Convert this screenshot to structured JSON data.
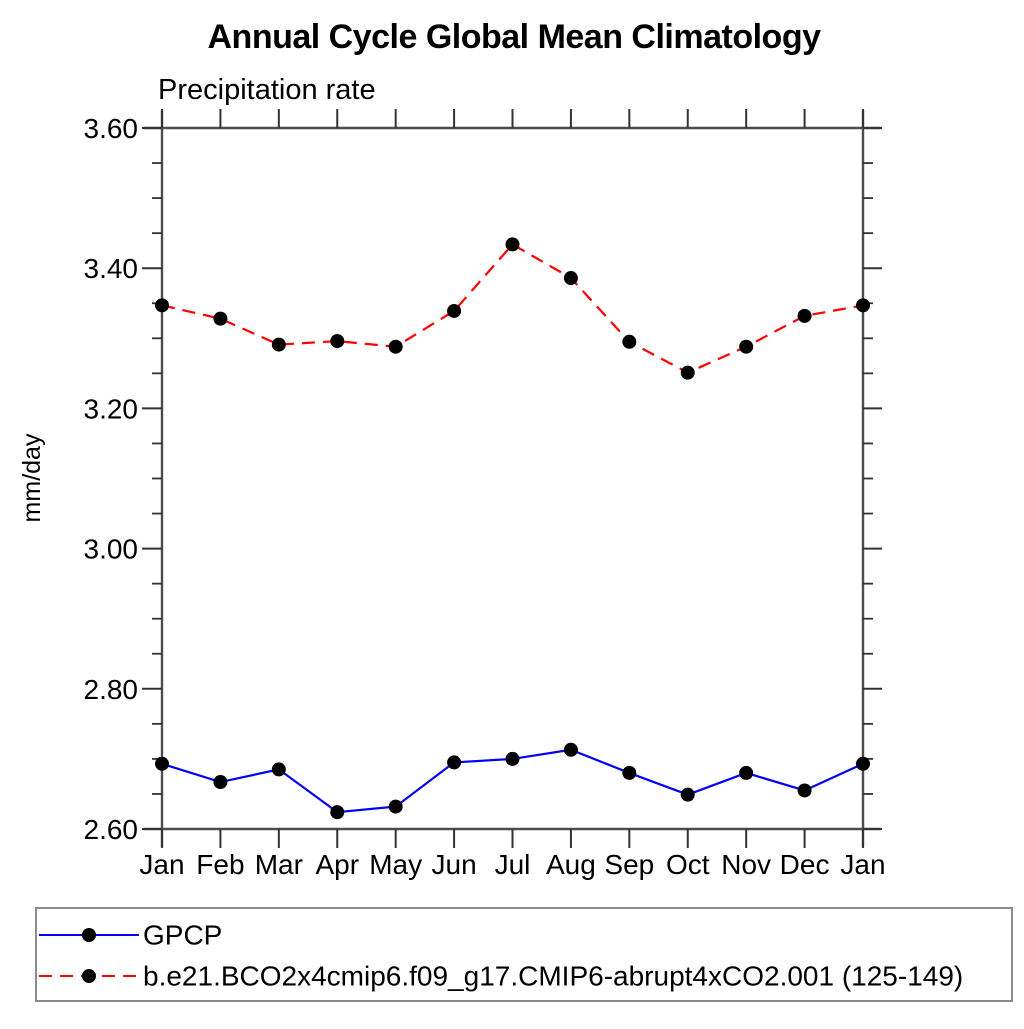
{
  "title": "Annual Cycle Global Mean Climatology",
  "subtitle": "Precipitation rate",
  "y_axis": {
    "label": "mm/day",
    "tick_labels": [
      "2.60",
      "2.80",
      "3.00",
      "3.20",
      "3.40",
      "3.60"
    ]
  },
  "x_axis": {
    "tick_labels": [
      "Jan",
      "Feb",
      "Mar",
      "Apr",
      "May",
      "Jun",
      "Jul",
      "Aug",
      "Sep",
      "Oct",
      "Nov",
      "Dec",
      "Jan"
    ]
  },
  "legend": {
    "entries": [
      {
        "label": "GPCP",
        "color": "#0000ff",
        "style": "solid"
      },
      {
        "label": "b.e21.BCO2x4cmip6.f09_g17.CMIP6-abrupt4xCO2.001 (125-149)",
        "color": "#ff0000",
        "style": "dashed"
      }
    ]
  },
  "colors": {
    "gpcp_line": "#0000ff",
    "model_line": "#ff0000",
    "marker": "#000000",
    "axis": "#4d4d4d",
    "tick": "#333333",
    "legend_border": "#8a8a8a",
    "background": "#ffffff"
  },
  "chart_data": {
    "type": "line",
    "title": "Annual Cycle Global Mean Climatology",
    "subtitle": "Precipitation rate",
    "ylabel": "mm/day",
    "x": [
      "Jan",
      "Feb",
      "Mar",
      "Apr",
      "May",
      "Jun",
      "Jul",
      "Aug",
      "Sep",
      "Oct",
      "Nov",
      "Dec",
      "Jan"
    ],
    "series": [
      {
        "name": "GPCP",
        "color": "#0000ff",
        "line_style": "solid",
        "marker": "filled-circle",
        "marker_color": "#000000",
        "values": [
          2.693,
          2.667,
          2.685,
          2.624,
          2.632,
          2.695,
          2.7,
          2.713,
          2.68,
          2.649,
          2.68,
          2.655,
          2.693
        ]
      },
      {
        "name": "b.e21.BCO2x4cmip6.f09_g17.CMIP6-abrupt4xCO2.001 (125-149)",
        "color": "#ff0000",
        "line_style": "dashed",
        "marker": "filled-circle",
        "marker_color": "#000000",
        "values": [
          3.347,
          3.328,
          3.291,
          3.296,
          3.288,
          3.339,
          3.434,
          3.386,
          3.295,
          3.251,
          3.288,
          3.332,
          3.347
        ]
      }
    ],
    "ylim": [
      2.6,
      3.6
    ],
    "y_major_ticks": [
      2.6,
      2.8,
      3.0,
      3.2,
      3.4,
      3.6
    ],
    "y_minor_step": 0.05,
    "grid": false,
    "legend_position": "bottom-left-box"
  }
}
